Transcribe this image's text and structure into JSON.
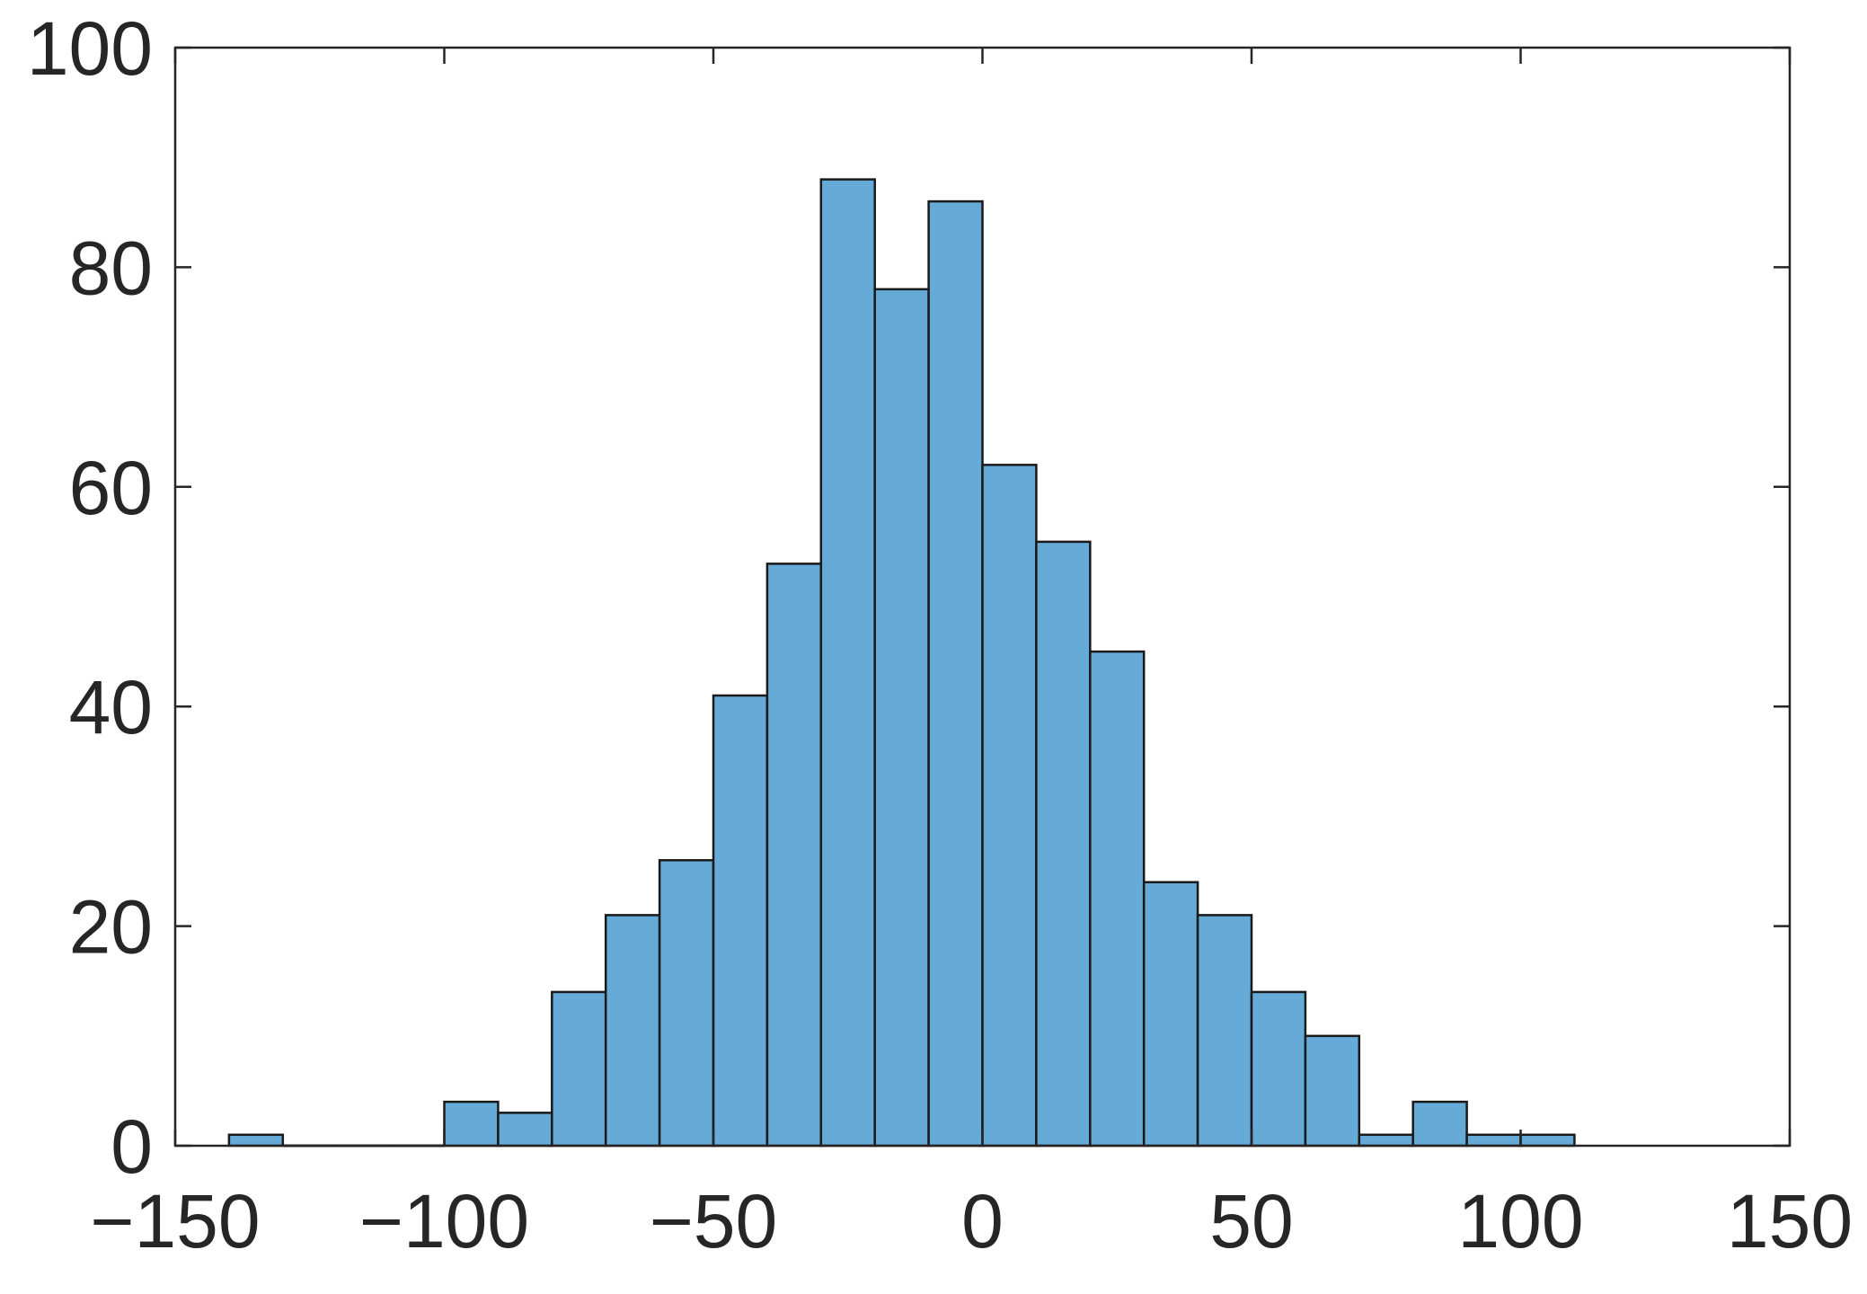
{
  "chart_data": {
    "type": "bar",
    "subtype": "histogram",
    "title": "",
    "xlabel": "",
    "ylabel": "",
    "xlim": [
      -150,
      150
    ],
    "ylim": [
      0,
      100
    ],
    "x_ticks": [
      -150,
      -100,
      -50,
      0,
      50,
      100,
      150
    ],
    "x_tick_labels": [
      "−150",
      "−100",
      "−50",
      "0",
      "50",
      "100",
      "150"
    ],
    "y_ticks": [
      0,
      20,
      40,
      60,
      80,
      100
    ],
    "y_tick_labels": [
      "0",
      "20",
      "40",
      "60",
      "80",
      "100"
    ],
    "bin_edges": [
      -140,
      -130,
      -120,
      -110,
      -100,
      -90,
      -80,
      -70,
      -60,
      -50,
      -40,
      -30,
      -20,
      -10,
      0,
      10,
      20,
      30,
      40,
      50,
      60,
      70,
      80,
      90,
      100,
      110
    ],
    "counts": [
      1,
      0,
      0,
      0,
      4,
      3,
      14,
      21,
      26,
      41,
      53,
      88,
      78,
      86,
      62,
      55,
      45,
      24,
      21,
      14,
      10,
      1,
      4,
      1,
      1
    ],
    "grid": false,
    "legend": "none",
    "colors": {
      "bar_fill": "#66aad8",
      "bar_edge": "#1a1a1a",
      "axes": "#262626"
    }
  }
}
